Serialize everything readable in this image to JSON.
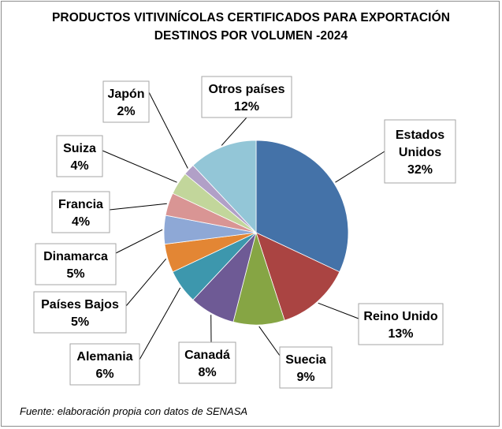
{
  "chart_data": {
    "type": "pie",
    "title": "PRODUCTOS VITIVINÍCOLAS CERTIFICADOS PARA EXPORTACIÓN",
    "subtitle": "DESTINOS POR VOLUMEN -2024",
    "unit": "%",
    "slices": [
      {
        "label_lines": [
          "Estados",
          "Unidos"
        ],
        "value": 32,
        "value_label": "32%",
        "color": "#4472a8"
      },
      {
        "label_lines": [
          "Reino Unido"
        ],
        "value": 13,
        "value_label": "13%",
        "color": "#aa4442"
      },
      {
        "label_lines": [
          "Suecia"
        ],
        "value": 9,
        "value_label": "9%",
        "color": "#86a544"
      },
      {
        "label_lines": [
          "Canadá"
        ],
        "value": 8,
        "value_label": "8%",
        "color": "#6e5a95"
      },
      {
        "label_lines": [
          "Alemania"
        ],
        "value": 6,
        "value_label": "6%",
        "color": "#3d97ad"
      },
      {
        "label_lines": [
          "Países Bajos"
        ],
        "value": 5,
        "value_label": "5%",
        "color": "#e38634"
      },
      {
        "label_lines": [
          "Dinamarca"
        ],
        "value": 5,
        "value_label": "5%",
        "color": "#8ea8d6"
      },
      {
        "label_lines": [
          "Francia"
        ],
        "value": 4,
        "value_label": "4%",
        "color": "#d99594"
      },
      {
        "label_lines": [
          "Suiza"
        ],
        "value": 4,
        "value_label": "4%",
        "color": "#c2d69b"
      },
      {
        "label_lines": [
          "Japón"
        ],
        "value": 2,
        "value_label": "2%",
        "color": "#b1a0c7"
      },
      {
        "label_lines": [
          "Otros países"
        ],
        "value": 12,
        "value_label": "12%",
        "color": "#93c6d7"
      }
    ]
  },
  "source": "Fuente: elaboración propia con datos de SENASA"
}
